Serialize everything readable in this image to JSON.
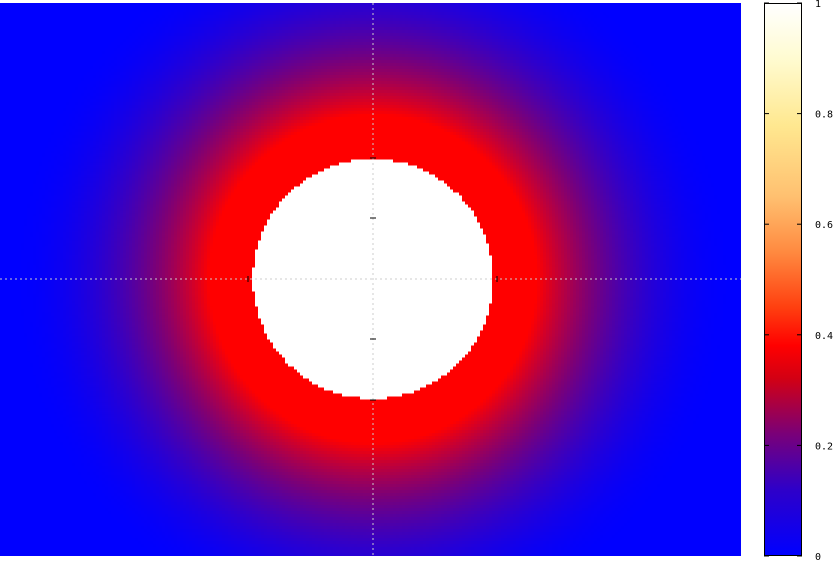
{
  "chart_data": {
    "type": "heatmap",
    "title": "",
    "xlabel": "",
    "ylabel": "",
    "x_range": [
      -1,
      1
    ],
    "y_range": [
      -1,
      1
    ],
    "grid": true,
    "crosshair_at": [
      0,
      0
    ],
    "field": {
      "description_values": {
        "center": [
          0,
          0
        ],
        "plateau_radius": 0.33,
        "plateau_value": 1.0,
        "ring_value": 0.4,
        "ring_outer_radius": 0.45,
        "background_value": 0.0,
        "falloff_radius": 1.0
      }
    },
    "colorbar": {
      "min": 0,
      "max": 1,
      "ticks": [
        {
          "value": 0,
          "label": "0"
        },
        {
          "value": 0.2,
          "label": "0.2"
        },
        {
          "value": 0.4,
          "label": "0.4"
        },
        {
          "value": 0.6,
          "label": "0.6"
        },
        {
          "value": 0.8,
          "label": "0.8"
        },
        {
          "value": 1,
          "label": "1"
        }
      ],
      "colormap": [
        "#0000ff",
        "#7a0078",
        "#ff0000",
        "#ff8a40",
        "#ffe890",
        "#ffffff"
      ]
    }
  }
}
